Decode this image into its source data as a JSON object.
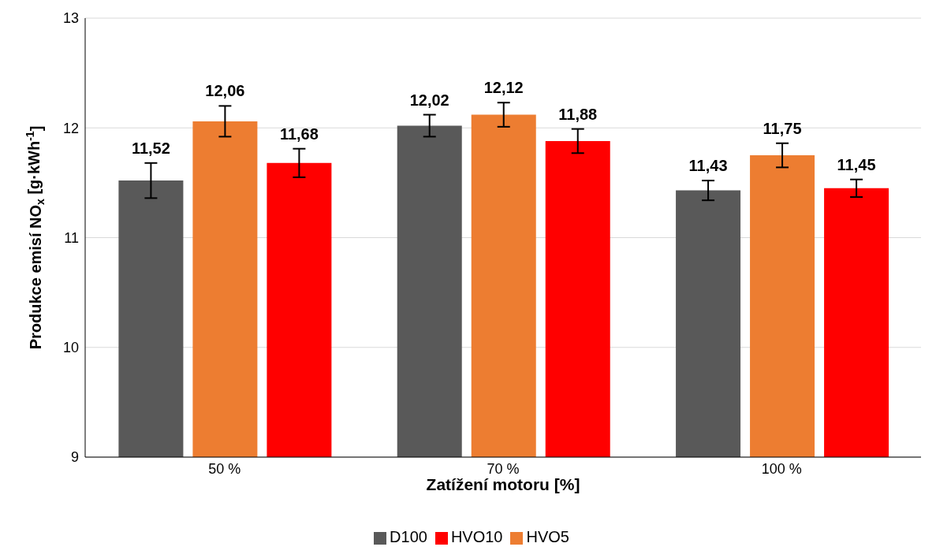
{
  "chart_data": {
    "type": "bar",
    "xlabel": "Zatížení motoru  [%]",
    "ylabel": "Produkce emisí NO$_{x}$ [g·kWh$^{-1}$]",
    "categories": [
      "50 %",
      "70 %",
      "100 %"
    ],
    "series": [
      {
        "name": "D100",
        "color": "#595959",
        "values": [
          11.52,
          12.02,
          11.43
        ],
        "errors": [
          0.16,
          0.1,
          0.09
        ],
        "value_labels": [
          "11,52",
          "12,02",
          "11,43"
        ]
      },
      {
        "name": "HVO5",
        "color": "#ed7d31",
        "values": [
          12.06,
          12.12,
          11.75
        ],
        "errors": [
          0.14,
          0.11,
          0.11
        ],
        "value_labels": [
          "12,06",
          "12,12",
          "11,75"
        ]
      },
      {
        "name": "HVO10",
        "color": "#ff0000",
        "values": [
          11.68,
          11.88,
          11.45
        ],
        "errors": [
          0.13,
          0.11,
          0.08
        ],
        "value_labels": [
          "11,68",
          "11,88",
          "11,45"
        ]
      }
    ],
    "ylim": [
      9,
      13
    ],
    "yticks": [
      9,
      10,
      11,
      12,
      13
    ],
    "grid": "y",
    "legend": "bottom"
  }
}
